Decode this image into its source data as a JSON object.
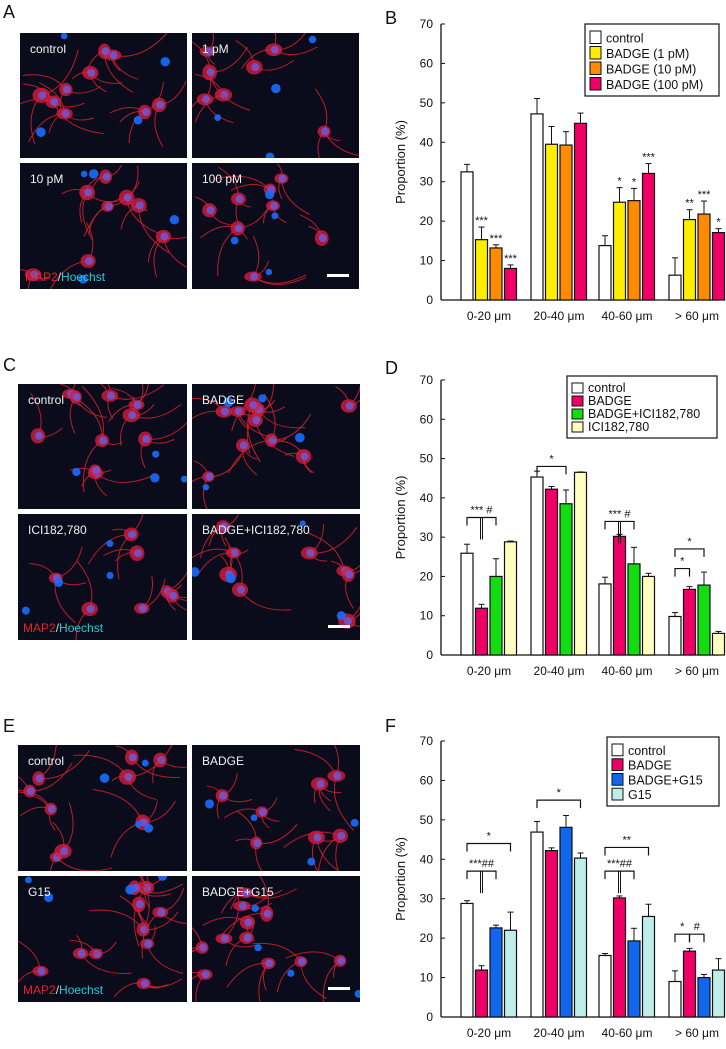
{
  "figure": {
    "panels": {
      "A": {
        "letter": "A",
        "images": [
          {
            "label": "control"
          },
          {
            "label": "1 pM"
          },
          {
            "label": "10 pM"
          },
          {
            "label": "100 pM"
          }
        ],
        "stain": {
          "red": "MAP2",
          "sep": "/",
          "cyan": "Hoechst"
        }
      },
      "C": {
        "letter": "C",
        "images": [
          {
            "label": "control"
          },
          {
            "label": "BADGE"
          },
          {
            "label": "ICI182,780"
          },
          {
            "label": "BADGE+ICI182,780"
          }
        ],
        "stain": {
          "red": "MAP2",
          "sep": "/",
          "cyan": "Hoechst"
        }
      },
      "E": {
        "letter": "E",
        "images": [
          {
            "label": "control"
          },
          {
            "label": "BADGE"
          },
          {
            "label": "G15"
          },
          {
            "label": "BADGE+G15"
          }
        ],
        "stain": {
          "red": "MAP2",
          "sep": "/",
          "cyan": "Hoechst"
        }
      },
      "B": {
        "letter": "B"
      },
      "D": {
        "letter": "D"
      },
      "F": {
        "letter": "F"
      }
    }
  },
  "chart_data": [
    {
      "panel": "B",
      "type": "bar",
      "title": "",
      "xlabel": "",
      "ylabel": "Proportion (%)",
      "ylim": [
        0,
        70
      ],
      "yticks": [
        0,
        10,
        20,
        30,
        40,
        50,
        60,
        70
      ],
      "grid": false,
      "legend_position": "top-right",
      "categories": [
        "0-20 μm",
        "20-40 μm",
        "40-60 μm",
        "> 60 μm"
      ],
      "series": [
        {
          "name": "control",
          "color": "#ffffff",
          "values": [
            32.5,
            47.2,
            13.8,
            6.3
          ],
          "errors": [
            1.9,
            3.9,
            2.5,
            4.4
          ]
        },
        {
          "name": "BADGE (1 pM)",
          "color": "#ffee00",
          "values": [
            15.3,
            39.5,
            24.8,
            20.4
          ],
          "errors": [
            3.2,
            4.5,
            3.7,
            2.5
          ]
        },
        {
          "name": "BADGE (10 pM)",
          "color": "#ff8c00",
          "values": [
            13.2,
            39.3,
            25.2,
            21.8
          ],
          "errors": [
            0.8,
            3.4,
            3.1,
            3.3
          ]
        },
        {
          "name": "BADGE (100 pM)",
          "color": "#ee0066",
          "values": [
            8.0,
            44.8,
            32.1,
            17.1
          ],
          "errors": [
            0.9,
            2.6,
            2.5,
            1.0
          ]
        }
      ],
      "annotations": [
        {
          "text": "***",
          "category": 0,
          "series": 1
        },
        {
          "text": "***",
          "category": 0,
          "series": 2
        },
        {
          "text": "***",
          "category": 0,
          "series": 3
        },
        {
          "text": "*",
          "category": 2,
          "series": 1
        },
        {
          "text": "*",
          "category": 2,
          "series": 2
        },
        {
          "text": "***",
          "category": 2,
          "series": 3
        },
        {
          "text": "**",
          "category": 3,
          "series": 1
        },
        {
          "text": "***",
          "category": 3,
          "series": 2
        },
        {
          "text": "*",
          "category": 3,
          "series": 3
        }
      ]
    },
    {
      "panel": "D",
      "type": "bar",
      "title": "",
      "xlabel": "",
      "ylabel": "Proportion (%)",
      "ylim": [
        0,
        70
      ],
      "yticks": [
        0,
        10,
        20,
        30,
        40,
        50,
        60,
        70
      ],
      "grid": false,
      "legend_position": "top-right",
      "categories": [
        "0-20 μm",
        "20-40 μm",
        "40-60 μm",
        "> 60 μm"
      ],
      "series": [
        {
          "name": "control",
          "color": "#ffffff",
          "values": [
            25.9,
            45.3,
            18.1,
            9.8
          ],
          "errors": [
            2.3,
            1.5,
            1.7,
            1.0
          ]
        },
        {
          "name": "BADGE",
          "color": "#ee0066",
          "values": [
            11.9,
            42.2,
            30.2,
            16.7
          ],
          "errors": [
            1.0,
            0.7,
            0.5,
            0.7
          ]
        },
        {
          "name": "BADGE+ICI182,780",
          "color": "#11dd11",
          "values": [
            20.0,
            38.5,
            23.2,
            17.8
          ],
          "errors": [
            4.5,
            3.5,
            4.2,
            3.3
          ]
        },
        {
          "name": "ICI182,780",
          "color": "#ffffc0",
          "values": [
            28.8,
            46.5,
            20.0,
            5.5
          ],
          "errors": [
            0.2,
            0.1,
            0.8,
            0.5
          ]
        }
      ],
      "annotations": [
        {
          "text": "*** #",
          "category": 0,
          "type": "bracket"
        },
        {
          "text": "*",
          "category": 1,
          "type": "bracket"
        },
        {
          "text": "*** #",
          "category": 2,
          "type": "bracket"
        },
        {
          "text": "*",
          "category": 3,
          "type": "bracket"
        },
        {
          "text": "*",
          "category": 3,
          "type": "bracket"
        }
      ]
    },
    {
      "panel": "F",
      "type": "bar",
      "title": "",
      "xlabel": "",
      "ylabel": "Proportion (%)",
      "ylim": [
        0,
        70
      ],
      "yticks": [
        0,
        10,
        20,
        30,
        40,
        50,
        60,
        70
      ],
      "grid": false,
      "legend_position": "top-right",
      "categories": [
        "0-20 μm",
        "20-40 μm",
        "40-60 μm",
        "> 60 μm"
      ],
      "series": [
        {
          "name": "control",
          "color": "#ffffff",
          "values": [
            28.8,
            46.9,
            15.6,
            9.0
          ],
          "errors": [
            0.7,
            2.7,
            0.5,
            2.7
          ]
        },
        {
          "name": "BADGE",
          "color": "#ee0066",
          "values": [
            11.9,
            42.2,
            30.2,
            16.7
          ],
          "errors": [
            1.1,
            0.7,
            0.5,
            0.7
          ]
        },
        {
          "name": "BADGE+G15",
          "color": "#1166ee",
          "values": [
            22.6,
            48.1,
            19.3,
            10.0
          ],
          "errors": [
            0.7,
            3.0,
            3.2,
            0.8
          ]
        },
        {
          "name": "G15",
          "color": "#bfeeea",
          "values": [
            22.0,
            40.3,
            25.5,
            11.9
          ],
          "errors": [
            4.6,
            1.3,
            3.1,
            2.9
          ]
        }
      ],
      "annotations": [
        {
          "text": "*",
          "category": 0,
          "type": "bracket"
        },
        {
          "text": "***##",
          "category": 0,
          "type": "bracket"
        },
        {
          "text": "*",
          "category": 1,
          "type": "bracket"
        },
        {
          "text": "**",
          "category": 2,
          "type": "bracket"
        },
        {
          "text": "***##",
          "category": 2,
          "type": "bracket"
        },
        {
          "text": "*",
          "category": 3,
          "type": "bracket"
        },
        {
          "text": "#",
          "category": 3,
          "type": "bracket"
        }
      ]
    }
  ]
}
